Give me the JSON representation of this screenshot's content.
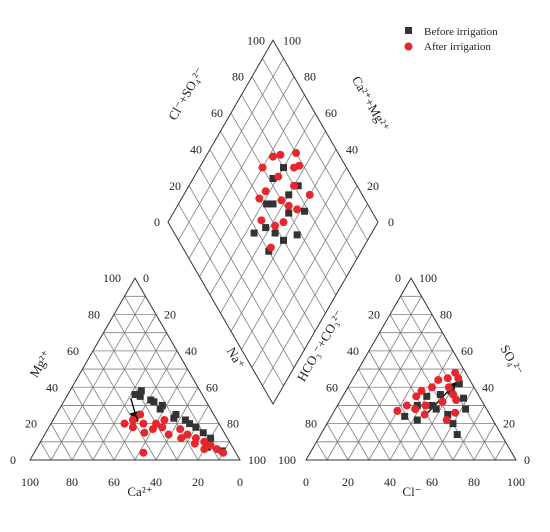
{
  "chart_data": {
    "type": "scatter",
    "subtype": "piper-diagram",
    "legend": {
      "position": "top-right",
      "entries": [
        {
          "label": "Before irrigation",
          "marker": "square",
          "color": "#333333"
        },
        {
          "label": "After irrigation",
          "marker": "circle",
          "color": "#e8262d"
        }
      ]
    },
    "axis_labels": {
      "cation_bottom": "Ca²⁺",
      "cation_left": "Mg²⁺",
      "cation_right": "Na⁺",
      "anion_bottom": "Cl⁻",
      "anion_left": "HCO₃⁻+CO₃²⁻",
      "anion_right": "SO₄²⁻",
      "diamond_left": "Cl⁻+SO₄²⁻",
      "diamond_right": "Ca²⁺+Mg²⁺"
    },
    "tick_labels": [
      "0",
      "20",
      "40",
      "60",
      "80",
      "100"
    ],
    "grid": true,
    "cation_triangle": {
      "series": [
        {
          "name": "Before irrigation",
          "points": [
            {
              "ca": 30,
              "mg": 35
            },
            {
              "ca": 28,
              "mg": 38
            },
            {
              "ca": 25,
              "mg": 32
            },
            {
              "ca": 22,
              "mg": 30
            },
            {
              "ca": 24,
              "mg": 28
            },
            {
              "ca": 18,
              "mg": 25
            },
            {
              "ca": 15,
              "mg": 22
            },
            {
              "ca": 20,
              "mg": 23
            },
            {
              "ca": 12,
              "mg": 18
            },
            {
              "ca": 10,
              "mg": 15
            },
            {
              "ca": 8,
              "mg": 12
            },
            {
              "ca": 6,
              "mg": 5
            },
            {
              "ca": 14,
              "mg": 20
            },
            {
              "ca": 26,
              "mg": 33
            },
            {
              "ca": 32,
              "mg": 36
            },
            {
              "ca": 12,
              "mg": 7
            }
          ]
        },
        {
          "name": "After irrigation",
          "points": [
            {
              "ca": 45,
              "mg": 20
            },
            {
              "ca": 40,
              "mg": 22
            },
            {
              "ca": 35,
              "mg": 25
            },
            {
              "ca": 30,
              "mg": 20
            },
            {
              "ca": 28,
              "mg": 18
            },
            {
              "ca": 25,
              "mg": 22
            },
            {
              "ca": 20,
              "mg": 17
            },
            {
              "ca": 18,
              "mg": 14
            },
            {
              "ca": 15,
              "mg": 12
            },
            {
              "ca": 12,
              "mg": 10
            },
            {
              "ca": 10,
              "mg": 8
            },
            {
              "ca": 8,
              "mg": 6
            },
            {
              "ca": 6,
              "mg": 4
            },
            {
              "ca": 42,
              "mg": 18
            },
            {
              "ca": 38,
              "mg": 15
            },
            {
              "ca": 33,
              "mg": 17
            },
            {
              "ca": 22,
              "mg": 12
            },
            {
              "ca": 17,
              "mg": 9
            },
            {
              "ca": 14,
              "mg": 6
            },
            {
              "ca": 44,
              "mg": 4
            },
            {
              "ca": 36,
              "mg": 20
            },
            {
              "ca": 27,
              "mg": 14
            }
          ]
        }
      ]
    },
    "anion_triangle": {
      "series": [
        {
          "name": "Before irrigation",
          "points": [
            {
              "cl": 40,
              "so4": 35
            },
            {
              "cl": 45,
              "so4": 30
            },
            {
              "cl": 50,
              "so4": 38
            },
            {
              "cl": 55,
              "so4": 25
            },
            {
              "cl": 48,
              "so4": 28
            },
            {
              "cl": 42,
              "so4": 22
            },
            {
              "cl": 38,
              "so4": 30
            },
            {
              "cl": 60,
              "so4": 20
            },
            {
              "cl": 52,
              "so4": 42
            },
            {
              "cl": 35,
              "so4": 24
            },
            {
              "cl": 62,
              "so4": 28
            },
            {
              "cl": 46,
              "so4": 36
            },
            {
              "cl": 58,
              "so4": 34
            },
            {
              "cl": 65,
              "so4": 14
            }
          ]
        },
        {
          "name": "After irrigation",
          "points": [
            {
              "cl": 45,
              "so4": 45
            },
            {
              "cl": 40,
              "so4": 40
            },
            {
              "cl": 50,
              "so4": 45
            },
            {
              "cl": 35,
              "so4": 35
            },
            {
              "cl": 42,
              "so4": 30
            },
            {
              "cl": 55,
              "so4": 33
            },
            {
              "cl": 38,
              "so4": 28
            },
            {
              "cl": 48,
              "so4": 40
            },
            {
              "cl": 33,
              "so4": 30
            },
            {
              "cl": 44,
              "so4": 25
            },
            {
              "cl": 52,
              "so4": 36
            },
            {
              "cl": 36,
              "so4": 38
            },
            {
              "cl": 56,
              "so4": 22
            },
            {
              "cl": 47,
              "so4": 48
            },
            {
              "cl": 41,
              "so4": 44
            },
            {
              "cl": 58,
              "so4": 26
            },
            {
              "cl": 30,
              "so4": 27
            },
            {
              "cl": 49,
              "so4": 32
            }
          ]
        }
      ]
    },
    "diamond": {
      "series": [
        {
          "name": "Before irrigation",
          "points": [
            {
              "clso4": 45,
              "camg": 40
            },
            {
              "clso4": 50,
              "camg": 35
            },
            {
              "clso4": 55,
              "camg": 45
            },
            {
              "clso4": 40,
              "camg": 50
            },
            {
              "clso4": 60,
              "camg": 30
            },
            {
              "clso4": 48,
              "camg": 28
            },
            {
              "clso4": 52,
              "camg": 55
            },
            {
              "clso4": 35,
              "camg": 42
            },
            {
              "clso4": 58,
              "camg": 48
            },
            {
              "clso4": 44,
              "camg": 60
            },
            {
              "clso4": 62,
              "camg": 38
            },
            {
              "clso4": 38,
              "camg": 32
            },
            {
              "clso4": 56,
              "camg": 62
            },
            {
              "clso4": 46,
              "camg": 52
            }
          ]
        },
        {
          "name": "After irrigation",
          "points": [
            {
              "clso4": 50,
              "camg": 30
            },
            {
              "clso4": 55,
              "camg": 25
            },
            {
              "clso4": 60,
              "camg": 35
            },
            {
              "clso4": 45,
              "camg": 45
            },
            {
              "clso4": 65,
              "camg": 28
            },
            {
              "clso4": 58,
              "camg": 20
            },
            {
              "clso4": 52,
              "camg": 40
            },
            {
              "clso4": 42,
              "camg": 35
            },
            {
              "clso4": 62,
              "camg": 45
            },
            {
              "clso4": 48,
              "camg": 50
            },
            {
              "clso4": 68,
              "camg": 32
            },
            {
              "clso4": 40,
              "camg": 25
            },
            {
              "clso4": 56,
              "camg": 55
            },
            {
              "clso4": 47,
              "camg": 38
            },
            {
              "clso4": 63,
              "camg": 50
            },
            {
              "clso4": 53,
              "camg": 22
            },
            {
              "clso4": 44,
              "camg": 58
            },
            {
              "clso4": 70,
              "camg": 40
            }
          ]
        }
      ]
    },
    "trend_arrows": [
      {
        "triangle": "cation",
        "from": {
          "ca": 35,
          "mg": 34
        },
        "to": {
          "ca": 38,
          "mg": 22
        }
      },
      {
        "triangle": "anion",
        "from": {
          "cl": 45,
          "so4": 26
        },
        "to": {
          "cl": 50,
          "so4": 42
        }
      }
    ]
  }
}
